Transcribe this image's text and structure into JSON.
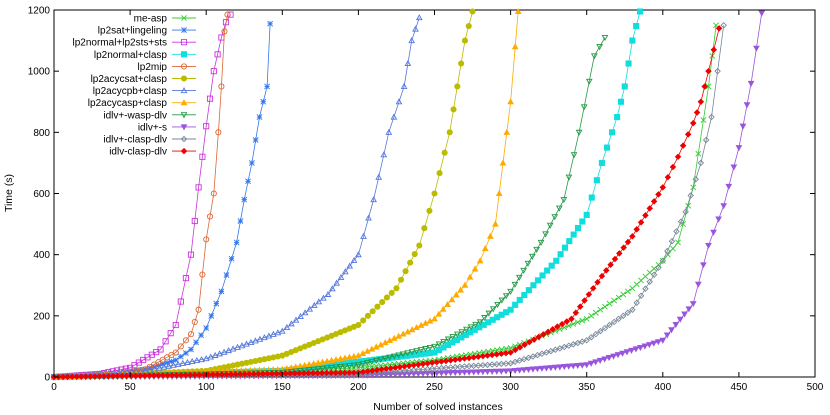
{
  "chart_data": {
    "type": "line",
    "title": "",
    "xlabel": "Number of solved instances",
    "ylabel": "Time (s)",
    "xlim": [
      0,
      500
    ],
    "ylim": [
      0,
      1200
    ],
    "x_ticks": [
      "0",
      "50",
      "100",
      "150",
      "200",
      "250",
      "300",
      "350",
      "400",
      "450",
      "500"
    ],
    "y_ticks": [
      "0",
      "200",
      "400",
      "600",
      "800",
      "1000",
      "1200"
    ],
    "grid": false,
    "legend_position": "top-left",
    "series": [
      {
        "name": "me-asp",
        "color": "#33cc33",
        "marker": "x",
        "x": [
          0,
          100,
          200,
          250,
          300,
          350,
          380,
          400,
          410,
          420,
          430,
          435
        ],
        "y": [
          0,
          8,
          30,
          55,
          95,
          190,
          290,
          380,
          440,
          620,
          950,
          1150
        ]
      },
      {
        "name": "lp2sat+lingeling",
        "color": "#3377ee",
        "marker": "star",
        "x": [
          0,
          40,
          60,
          80,
          90,
          100,
          110,
          120,
          125,
          130,
          135,
          140,
          142
        ],
        "y": [
          0,
          10,
          25,
          55,
          90,
          160,
          280,
          440,
          580,
          700,
          850,
          950,
          1155
        ]
      },
      {
        "name": "lp2normal+lp2sts+sts",
        "color": "#cc33dd",
        "marker": "square",
        "x": [
          0,
          30,
          50,
          70,
          80,
          90,
          95,
          100,
          105,
          110,
          113,
          116
        ],
        "y": [
          0,
          10,
          30,
          90,
          170,
          400,
          620,
          820,
          1000,
          1110,
          1160,
          1185
        ]
      },
      {
        "name": "lp2normal+clasp",
        "color": "#11dddd",
        "marker": "filled-square",
        "x": [
          0,
          150,
          250,
          300,
          330,
          350,
          360,
          370,
          375,
          380,
          385
        ],
        "y": [
          0,
          20,
          80,
          220,
          380,
          530,
          700,
          850,
          950,
          1100,
          1195
        ]
      },
      {
        "name": "lp2mip",
        "color": "#dd6633",
        "marker": "circle",
        "x": [
          0,
          40,
          60,
          80,
          90,
          95,
          100,
          105,
          108,
          110,
          112,
          114
        ],
        "y": [
          0,
          8,
          25,
          80,
          140,
          220,
          450,
          600,
          800,
          950,
          1130,
          1185
        ]
      },
      {
        "name": "lp2acycsat+clasp",
        "color": "#bbbb00",
        "marker": "filled-circle",
        "x": [
          0,
          100,
          150,
          200,
          225,
          240,
          250,
          260,
          265,
          270,
          275
        ],
        "y": [
          0,
          20,
          70,
          170,
          290,
          430,
          600,
          800,
          950,
          1100,
          1195
        ]
      },
      {
        "name": "lp2acycpb+clasp",
        "color": "#5577dd",
        "marker": "triangle",
        "x": [
          0,
          60,
          100,
          150,
          180,
          200,
          210,
          220,
          230,
          235,
          240
        ],
        "y": [
          0,
          20,
          60,
          150,
          270,
          400,
          580,
          800,
          950,
          1100,
          1175
        ]
      },
      {
        "name": "lp2acycasp+clasp",
        "color": "#ffaa00",
        "marker": "filled-triangle",
        "x": [
          0,
          150,
          200,
          250,
          270,
          280,
          290,
          295,
          300,
          303,
          305
        ],
        "y": [
          0,
          25,
          70,
          190,
          300,
          380,
          500,
          700,
          900,
          1080,
          1195
        ]
      },
      {
        "name": "idlv+-wasp-dlv",
        "color": "#229944",
        "marker": "inv-triangle",
        "x": [
          0,
          150,
          200,
          250,
          280,
          300,
          320,
          335,
          345,
          355,
          362
        ],
        "y": [
          0,
          15,
          40,
          100,
          180,
          280,
          440,
          580,
          800,
          1050,
          1110
        ]
      },
      {
        "name": "idlv+-s",
        "color": "#9955dd",
        "marker": "filled-inv-triangle",
        "x": [
          0,
          200,
          300,
          350,
          400,
          420,
          430,
          440,
          450,
          458,
          465
        ],
        "y": [
          0,
          5,
          20,
          40,
          120,
          240,
          430,
          560,
          750,
          960,
          1190
        ]
      },
      {
        "name": "idlv+-clasp-dlv",
        "color": "#778899",
        "marker": "diamond",
        "x": [
          0,
          200,
          300,
          350,
          380,
          400,
          415,
          425,
          432,
          436,
          440
        ],
        "y": [
          0,
          10,
          45,
          120,
          220,
          380,
          540,
          700,
          850,
          1000,
          1150
        ]
      },
      {
        "name": "idlv-clasp-dlv",
        "color": "#ee0000",
        "marker": "filled-diamond",
        "x": [
          0,
          200,
          300,
          340,
          360,
          380,
          400,
          410,
          420,
          425,
          430,
          437
        ],
        "y": [
          0,
          15,
          80,
          190,
          330,
          460,
          620,
          720,
          830,
          900,
          1000,
          1140
        ]
      }
    ]
  }
}
